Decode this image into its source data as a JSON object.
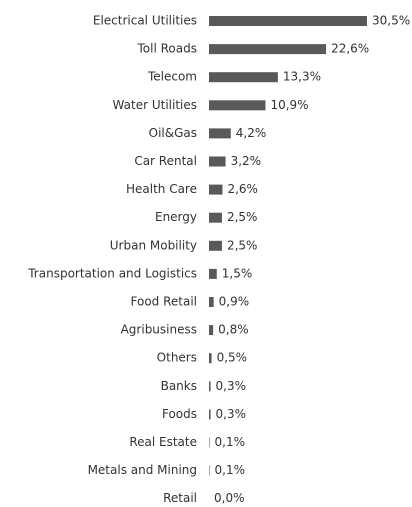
{
  "chart_data": {
    "type": "bar",
    "orientation": "horizontal",
    "color": "#595959",
    "categories": [
      "Electrical Utilities",
      "Toll Roads",
      "Telecom",
      "Water Utilities",
      "Oil&Gas",
      "Car Rental",
      "Health Care",
      "Energy",
      "Urban Mobility",
      "Transportation and Logistics",
      "Food Retail",
      "Agribusiness",
      "Others",
      "Banks",
      "Foods",
      "Real Estate",
      "Metals and Mining",
      "Retail"
    ],
    "values": [
      30.5,
      22.6,
      13.3,
      10.9,
      4.2,
      3.2,
      2.6,
      2.5,
      2.5,
      1.5,
      0.9,
      0.8,
      0.5,
      0.3,
      0.3,
      0.1,
      0.1,
      0.0
    ],
    "value_labels": [
      "30,5%",
      "22,6%",
      "13,3%",
      "10,9%",
      "4,2%",
      "3,2%",
      "2,6%",
      "2,5%",
      "2,5%",
      "1,5%",
      "0,9%",
      "0,8%",
      "0,5%",
      "0,3%",
      "0,3%",
      "0,1%",
      "0,1%",
      "0,0%"
    ]
  }
}
